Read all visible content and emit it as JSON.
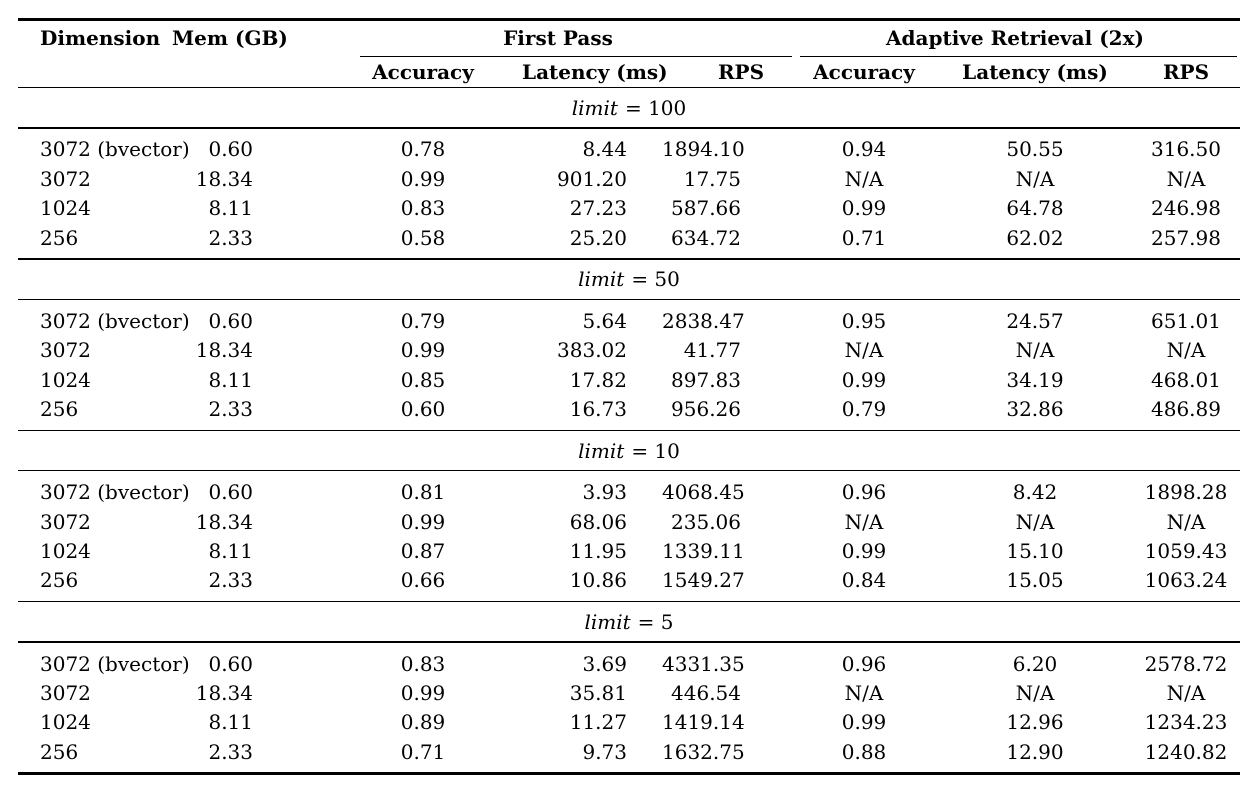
{
  "colors": {
    "background": "#ffffff",
    "text": "#000000",
    "rule": "#000000"
  },
  "header": {
    "dimension": "Dimension",
    "mem": "Mem (GB)",
    "group_first_pass": "First Pass",
    "group_adaptive": "Adaptive Retrieval (2x)",
    "sub": [
      "Accuracy",
      "Latency (ms)",
      "RPS",
      "Accuracy",
      "Latency (ms)",
      "RPS"
    ]
  },
  "sections": [
    {
      "label_var": "limit",
      "label_eq": "= 100",
      "rows": [
        [
          "3072 (bvector)",
          "0.60",
          "0.78",
          "8.44",
          "1894.10",
          "0.94",
          "50.55",
          "316.50"
        ],
        [
          "3072",
          "18.34",
          "0.99",
          "901.20",
          "17.75",
          "N/A",
          "N/A",
          "N/A"
        ],
        [
          "1024",
          "8.11",
          "0.83",
          "27.23",
          "587.66",
          "0.99",
          "64.78",
          "246.98"
        ],
        [
          "256",
          "2.33",
          "0.58",
          "25.20",
          "634.72",
          "0.71",
          "62.02",
          "257.98"
        ]
      ]
    },
    {
      "label_var": "limit",
      "label_eq": "= 50",
      "rows": [
        [
          "3072 (bvector)",
          "0.60",
          "0.79",
          "5.64",
          "2838.47",
          "0.95",
          "24.57",
          "651.01"
        ],
        [
          "3072",
          "18.34",
          "0.99",
          "383.02",
          "41.77",
          "N/A",
          "N/A",
          "N/A"
        ],
        [
          "1024",
          "8.11",
          "0.85",
          "17.82",
          "897.83",
          "0.99",
          "34.19",
          "468.01"
        ],
        [
          "256",
          "2.33",
          "0.60",
          "16.73",
          "956.26",
          "0.79",
          "32.86",
          "486.89"
        ]
      ]
    },
    {
      "label_var": "limit",
      "label_eq": "= 10",
      "rows": [
        [
          "3072 (bvector)",
          "0.60",
          "0.81",
          "3.93",
          "4068.45",
          "0.96",
          "8.42",
          "1898.28"
        ],
        [
          "3072",
          "18.34",
          "0.99",
          "68.06",
          "235.06",
          "N/A",
          "N/A",
          "N/A"
        ],
        [
          "1024",
          "8.11",
          "0.87",
          "11.95",
          "1339.11",
          "0.99",
          "15.10",
          "1059.43"
        ],
        [
          "256",
          "2.33",
          "0.66",
          "10.86",
          "1549.27",
          "0.84",
          "15.05",
          "1063.24"
        ]
      ]
    },
    {
      "label_var": "limit",
      "label_eq": "= 5",
      "rows": [
        [
          "3072 (bvector)",
          "0.60",
          "0.83",
          "3.69",
          "4331.35",
          "0.96",
          "6.20",
          "2578.72"
        ],
        [
          "3072",
          "18.34",
          "0.99",
          "35.81",
          "446.54",
          "N/A",
          "N/A",
          "N/A"
        ],
        [
          "1024",
          "8.11",
          "0.89",
          "11.27",
          "1419.14",
          "0.99",
          "12.96",
          "1234.23"
        ],
        [
          "256",
          "2.33",
          "0.71",
          "9.73",
          "1632.75",
          "0.88",
          "12.90",
          "1240.82"
        ]
      ]
    }
  ]
}
